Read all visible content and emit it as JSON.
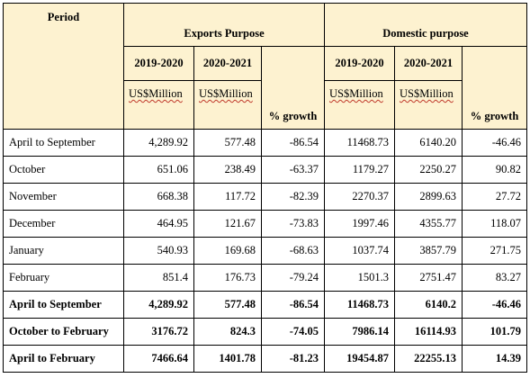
{
  "header": {
    "period": "Period",
    "exports_group": "Exports Purpose",
    "domestic_group": "Domestic purpose",
    "years": [
      "2019-2020",
      "2020-2021",
      "2019-2020",
      "2020-2021"
    ],
    "units": [
      "US$Million",
      "US$Million",
      "US$Million",
      "US$Million"
    ],
    "growth_labels": [
      "% growth",
      "% growth"
    ]
  },
  "rows": [
    {
      "period": "April to September",
      "cells": [
        "4,289.92",
        "577.48",
        "-86.54",
        "11468.73",
        "6140.20",
        "-46.46"
      ],
      "bold": false
    },
    {
      "period": "October",
      "cells": [
        "651.06",
        "238.49",
        "-63.37",
        "1179.27",
        "2250.27",
        "90.82"
      ],
      "bold": false
    },
    {
      "period": "November",
      "cells": [
        "668.38",
        "117.72",
        "-82.39",
        "2270.37",
        "2899.63",
        "27.72"
      ],
      "bold": false
    },
    {
      "period": "December",
      "cells": [
        "464.95",
        "121.67",
        "-73.83",
        "1997.46",
        "4355.77",
        "118.07"
      ],
      "bold": false
    },
    {
      "period": "January",
      "cells": [
        "540.93",
        "169.68",
        "-68.63",
        "1037.74",
        "3857.79",
        "271.75"
      ],
      "bold": false
    },
    {
      "period": "February",
      "cells": [
        "851.4",
        "176.73",
        "-79.24",
        "1501.3",
        "2751.47",
        "83.27"
      ],
      "bold": false
    },
    {
      "period": "April to September",
      "cells": [
        "4,289.92",
        "577.48",
        "-86.54",
        "11468.73",
        "6140.2",
        "-46.46"
      ],
      "bold": true
    },
    {
      "period": "October to February",
      "cells": [
        "3176.72",
        "824.3",
        "-74.05",
        "7986.14",
        "16114.93",
        "101.79"
      ],
      "bold": true
    },
    {
      "period": "April to February",
      "cells": [
        "7466.64",
        "1401.78",
        "-81.23",
        "19454.87",
        "22255.13",
        "14.39"
      ],
      "bold": true
    }
  ]
}
